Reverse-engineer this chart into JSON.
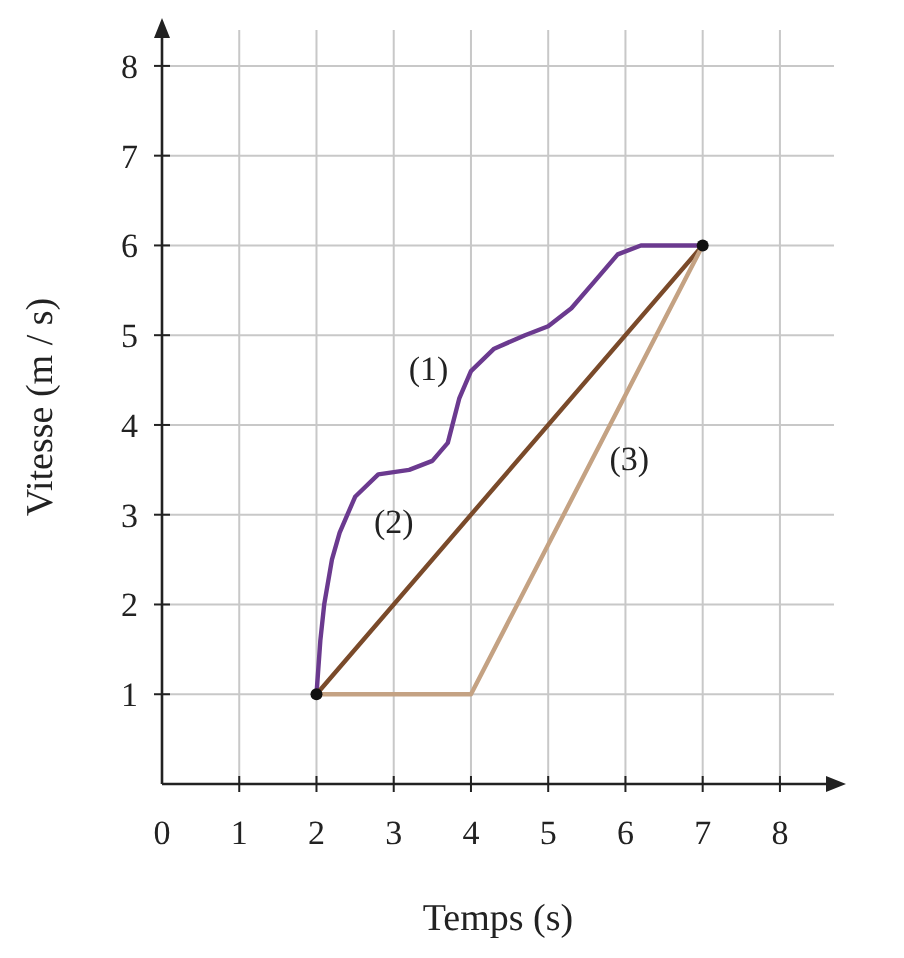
{
  "chart_data": {
    "type": "line",
    "xlabel": "Temps (s)",
    "ylabel": "Vitesse  (m / s)",
    "xlim": [
      0,
      8.7
    ],
    "ylim": [
      0,
      8.4
    ],
    "xticks": [
      0,
      1,
      2,
      3,
      4,
      5,
      6,
      7,
      8
    ],
    "yticks": [
      1,
      2,
      3,
      4,
      5,
      6,
      7,
      8
    ],
    "grid": true,
    "marker": "none",
    "line_style": "solid",
    "series": [
      {
        "name": "(1)",
        "color": "#6b3a8f",
        "x": [
          2,
          2.05,
          2.1,
          2.2,
          2.3,
          2.5,
          2.8,
          3.2,
          3.5,
          3.7,
          3.85,
          4,
          4.3,
          4.7,
          5,
          5.3,
          5.6,
          5.9,
          6.2,
          6.6,
          7
        ],
        "values": [
          1,
          1.6,
          2,
          2.5,
          2.8,
          3.2,
          3.45,
          3.5,
          3.6,
          3.8,
          4.3,
          4.6,
          4.85,
          5,
          5.1,
          5.3,
          5.6,
          5.9,
          6,
          6,
          6
        ]
      },
      {
        "name": "(2)",
        "color": "#7a4a2a",
        "x": [
          2,
          7
        ],
        "values": [
          1,
          6
        ]
      },
      {
        "name": "(3)",
        "color": "#c4a283",
        "x": [
          2,
          4,
          7
        ],
        "values": [
          1,
          1,
          6
        ]
      },
      {
        "type": "scatter",
        "color": "#111111",
        "x": [
          2,
          7
        ],
        "values": [
          1,
          6
        ],
        "marker": "circle"
      }
    ]
  }
}
